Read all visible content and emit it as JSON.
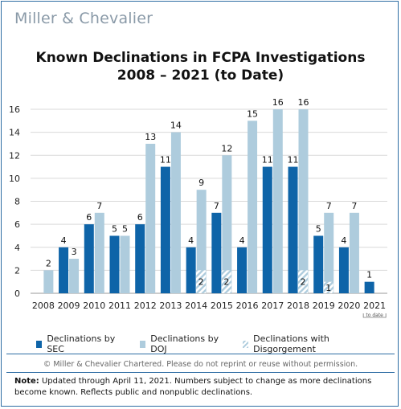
{
  "brand": "Miller & Chevalier",
  "copyright": "© Miller & Chevalier Chartered. Please do not reprint or reuse without permission.",
  "note": {
    "label": "Note:",
    "text": " Updated through April 11, 2021. Numbers subject to change as more declinations become known. Reflects public and nonpublic declinations."
  },
  "colors": {
    "sec": "#0e64a8",
    "doj": "#aeccdd",
    "disgorgement": "#aeccdd",
    "frame": "#2e6da4"
  },
  "chart_data": {
    "type": "bar",
    "title": [
      "Known Declinations in FCPA Investigations",
      "2008 – 2021 (to Date)"
    ],
    "categories": [
      "2008",
      "2009",
      "2010",
      "2011",
      "2012",
      "2013",
      "2014",
      "2015",
      "2016",
      "2017",
      "2018",
      "2019",
      "2020",
      "2021"
    ],
    "category_note": {
      "category": "2021",
      "text": "to date"
    },
    "ylim": [
      0,
      16
    ],
    "yticks": [
      0,
      2,
      4,
      6,
      8,
      10,
      12,
      14,
      16
    ],
    "series": [
      {
        "name": "Declinations by SEC",
        "values": [
          null,
          4,
          6,
          5,
          6,
          11,
          4,
          7,
          4,
          11,
          11,
          5,
          4,
          1
        ]
      },
      {
        "name": "Declinations by DOJ",
        "values": [
          2,
          3,
          7,
          5,
          13,
          14,
          9,
          12,
          15,
          16,
          16,
          7,
          7,
          null
        ]
      },
      {
        "name": "Declinations with Disgorgement",
        "values": [
          null,
          null,
          null,
          null,
          null,
          null,
          2,
          2,
          null,
          null,
          2,
          1,
          null,
          null
        ]
      }
    ]
  }
}
